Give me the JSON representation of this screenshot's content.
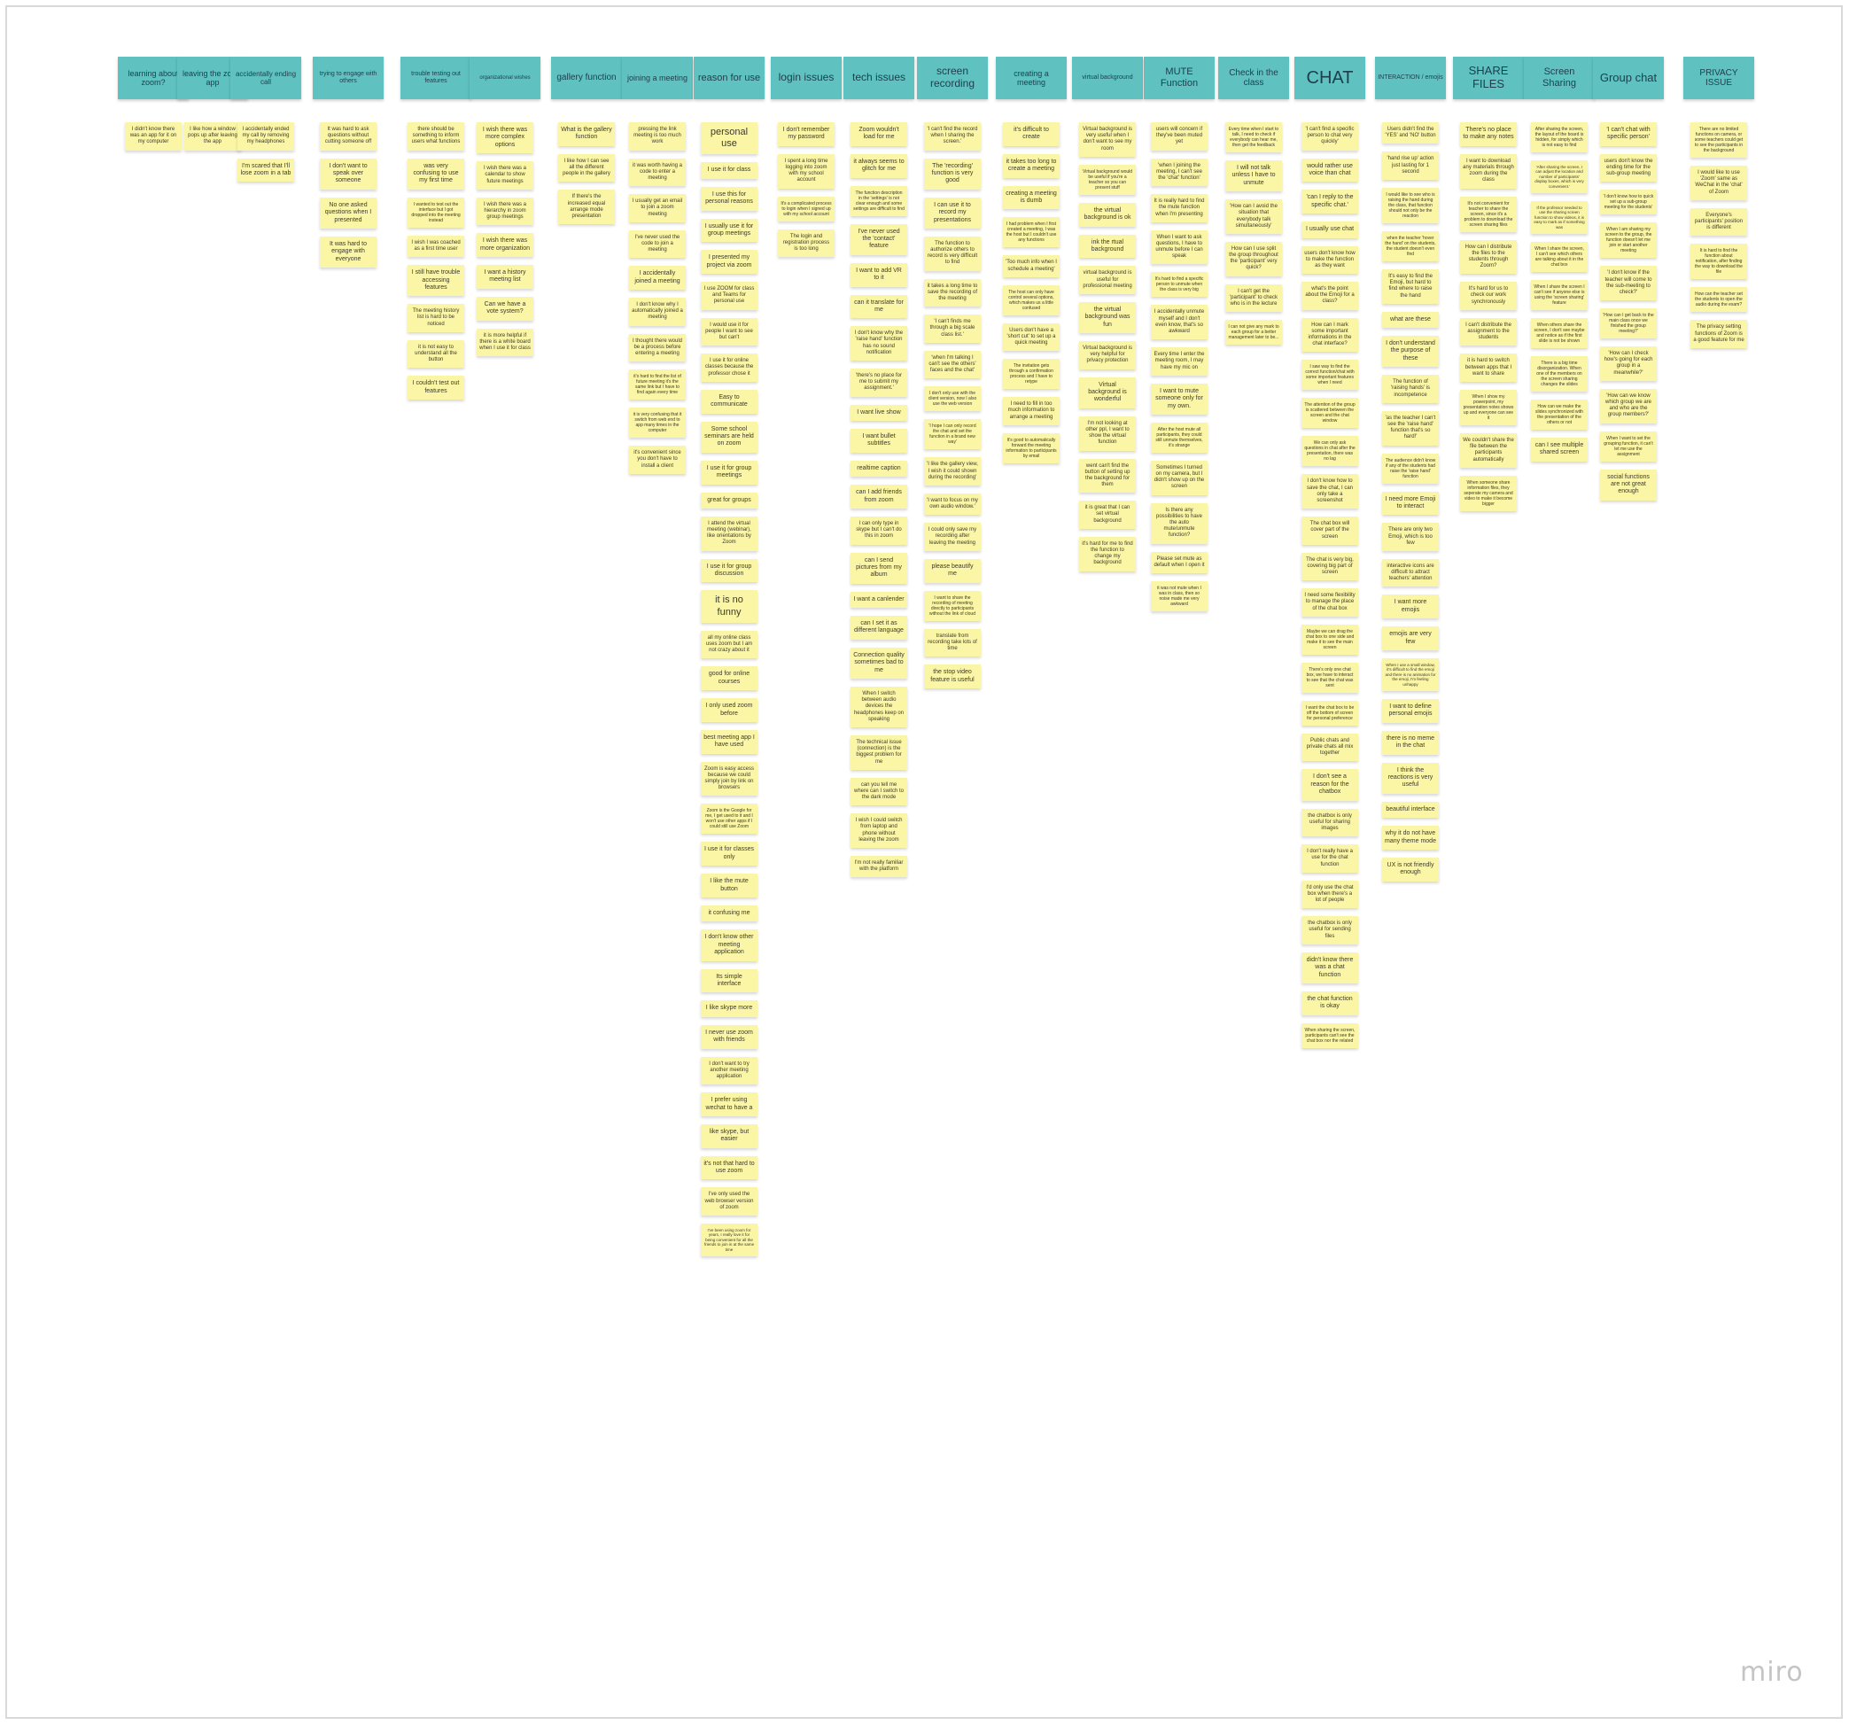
{
  "logo": "miro",
  "columns": [
    {
      "title": "learning about zoom?",
      "notes": [
        "I didn't know there was an app for it on my computer"
      ]
    },
    {
      "title": "leaving the zoom app",
      "notes": [
        "I like how a window pops up after leaving the app"
      ]
    },
    {
      "title": "accidentally ending call",
      "notes": [
        "I accidentally ended my call by removing my headphones",
        "I'm scared that I'll lose zoom in a tab"
      ]
    },
    {
      "title": "trying to engage with others",
      "notes": [
        "It was hard to ask questions without cutting someone off",
        "I don't want to speak over someone",
        "No one asked questions when I presented",
        "It was hard to engage with everyone"
      ]
    },
    {
      "title": "trouble testing out features",
      "notes": [
        "there should be something to inform users what functions",
        "was very confusing to use my first time",
        "I wanted to test out the interface but I got dropped into the meeting instead",
        "I wish I was coached as a first time user",
        "I still have trouble accessing features",
        "The meeting history list is hard to be noticed",
        "it is not easy to understand all the button",
        "I couldn't test out features"
      ]
    },
    {
      "title": "organizational wishes",
      "notes": [
        "I wish there was more complex options",
        "I wish there was a calendar to show future meetings",
        "I wish there was a hierarchy in zoom group meetings",
        "I wish there was more organization",
        "I want a history meeting list",
        "Can we have a vote system?",
        "it is more helpful if there is a white board when I use it for class"
      ]
    },
    {
      "title": "gallery function",
      "notes": [
        "What is the gallery function",
        "I like how I can see all the different people in the gallery",
        "If there's the increased equal arrange mode presentation"
      ]
    },
    {
      "title": "joining a meeting",
      "notes": [
        "pressing the link meeting is too much work",
        "it was worth having a code to enter a meeting",
        "I usually get an email to join a zoom meeting",
        "I've never used the code to join a meeting",
        "I accidentally joined a meeting",
        "I don't know why I automatically joined a meeting",
        "I thought there would be a process before entering a meeting",
        "it's hard to find the list of future meeting it's the same link but I have to find again every time",
        "it is very confusing that it switch from web end to app many times in the computer",
        "it's convenient since you don't have to install a client"
      ]
    },
    {
      "title": "reason for use",
      "notes": [
        "personal use",
        "I use it for class",
        "I use this for personal reasons",
        "I usually use it for group meetings",
        "I presented my project via zoom",
        "I use ZOOM for class and Teams for personal use",
        "I would use it for people I want to see but can't",
        "I use it for online classes because the professor chose it",
        "Easy to communicate",
        "Some school seminars are held on zoom",
        "I use it for group meetings",
        "great for groups",
        "I attend the virtual meeting (webinar), like orientations by Zoom",
        "I use it for group discussion",
        "it is no funny",
        "all my online class uses zoom but I am not crazy about it",
        "good for online courses",
        "I only used zoom before",
        "best meeting app I have used",
        "Zoom is easy access because we could simply join by link on browsers",
        "Zoom is the Google for me, I get used to it and I won't use other apps if I could still use Zoom",
        "I use it for classes only",
        "I like the mute button",
        "it confusing me",
        "I don't know other meeting application",
        "Its simple interface",
        "I like skype more",
        "I never use zoom with friends",
        "I don't want to try another meeting application",
        "I prefer using wechat to have a",
        "like skype, but easier",
        "it's not that hard to use zoom",
        "I've only used the web browser version of zoom",
        "I've been using zoom for years, I really love it for being convenient for all the friends to join in at the same time"
      ]
    },
    {
      "title": "login issues",
      "notes": [
        "I don't remember my password",
        "I spent a long time logging into zoom with my school account",
        "It's a complicated process to login when I signed up with my school account",
        "The login and registration process is too long"
      ]
    },
    {
      "title": "tech issues",
      "notes": [
        "Zoom wouldn't load for me",
        "it always seems to glitch for me",
        "The function description in the 'settings' is not clear enough and some settings are difficult to find",
        "I've never used the 'contact' feature",
        "I want to add VR to it",
        "can it translate for me",
        "I don't know why the 'raise hand' function has no sound notification",
        "'there's no place for me to submit my assignment.'",
        "I want live show",
        "I want bullet subtitles",
        "realtime caption",
        "can I add friends from zoom",
        "I can only type in skype but I can't do this in zoom",
        "can I send pictures from my album",
        "I want a canlender",
        "can I set it as different language",
        "Connection quality sometimes bad to me",
        "When I switch between audio devices the headphones keep on speaking",
        "The technical issue (connection) is the biggest problem for me",
        "can you tell me where can I switch to the dark mode",
        "I wish I could switch from laptop and phone without leaving the zoom",
        "I'm not really familiar with the platform"
      ]
    },
    {
      "title": "screen recording",
      "notes": [
        "'I can't find the record when I sharing the screen.'",
        "The 'recording' function is very good",
        "I can use it to record my presentations",
        "The function to authorize others to record is very difficult to find",
        "it takes a long time to save the recording of the meeting",
        "'I can't finds me through a big scale class list.'",
        "'when I'm talking I can't see the others' faces and the chat'",
        "I don't only use with the client version, now I also use the web version",
        "'I hope I can only record the chat and set the function in a brand new way'",
        "'I like the gallery view, I wish it could shown during the recording'",
        "'I want to focus on my own audio window.'",
        "I could only save my recording after leaving the meeting",
        "please beautify me",
        "I want to share the recording of meeting directly to participants without the link of cloud",
        "translate from recording take lots of time",
        "the stop video feature is useful"
      ]
    },
    {
      "title": "creating a meeting",
      "notes": [
        "it's difficult to create",
        "it takes too long to create a meeting",
        "creating a meeting is dumb",
        "I had problem when I first created a meeting, I was the host but I couldn't use any functions",
        "'Too much info when I schedule a meeting'",
        "The host can only have control several options, which makes us a little confused",
        "Users don't have a 'short cut' to set up a quick meeting",
        "The invitation gets through a confirmation process and I have to retype",
        "I need to fill in too much information to arrange a meeting",
        "It's good to automatically forward the meeting information to participants by email"
      ]
    },
    {
      "title": "virtual background",
      "notes": [
        "Virtual background is very useful when I don't want to see my room",
        "Virtual background would be useful if you're a teacher so you can present stuff",
        "the virtual background is ok",
        "ink the rtual background",
        "virtual background is useful for professional meeting",
        "the virtual background was fun",
        "Virtual background is very helpful for privacy protection",
        "Virtual background is wonderful",
        "I'm not looking at other ppl, I want to show the virtual function",
        "went can't find the button of setting up the background for them",
        "it is great that I can set virtual background",
        "it's hard for me to find the function to change my background"
      ]
    },
    {
      "title": "MUTE Function",
      "notes": [
        "users will concern if they've been muted yet",
        "'when I joining the meeting, I can't see the 'chat' function'",
        "It is really hard to find the mute function when I'm presenting",
        "When I want to ask questions, I have to unmute before I can speak",
        "It's hard to find a specific person to unmute when the class is very big",
        "I accidentally unmute myself and I don't even know, that's so awkward",
        "Every time I enter the meeting room, I may have my mic on",
        "I want to mute someone only for my own.",
        "After the host mute all participants, they could still unmute themselves, it's strange",
        "Sometimes I turned on my camera, but I didn't show up on the screen",
        "Is there any possibilities to have the auto mute/unmute function?",
        "Please set mute as default when I open it",
        "it was not mute when I was in class, then so noise made me very awkward"
      ]
    },
    {
      "title": "Check in the class",
      "notes": [
        "Every time when I start to talk, I need to check if everybody can hear me, then get the feedback",
        "I will not talk unless I have to unmute",
        "'How can I avoid the situation that everybody talk simultaneously'",
        "How can I use split the group throughout the 'participant' very quick?",
        "I can't get the 'participant' to check who is in the lecture",
        "I can not give any mark to each group for a better management later to be..."
      ]
    },
    {
      "title": "CHAT",
      "notes": [
        "'I can't find a specific person to chat very quickly'",
        "would rather use voice than chat",
        "'can I reply to the specific chat.'",
        "I usually use chat",
        "users don't know how to make the function as they want",
        "what's the point about the Emoji for a class?",
        "How can I mark some important informations in the chat interface?",
        "I saw way to find the correct function/chat with some important features when I need",
        "The attention of the group is scattered between the screen and the chat window",
        "We can only ask questions in chat after the presentation, there was no lag",
        "I don't know how to save the chat, I can only take a screenshot",
        "The chat box will cover part of the screen",
        "The chat is very big, covering big part of screen",
        "I need some flexibility to manage the place of the chat box",
        "Maybe we can drag the chat box to one side and make it to see the main screen",
        "There's only one chat box, we have to interact to see that the chat was sent",
        "I want the chat box to be off the bottom of screen for personal preference",
        "Public chats and private chats all mix together",
        "I don't see a reason for the chatbox",
        "the chatbox is only useful for sharing images",
        "I don't really have a use for the chat function",
        "I'd only use the chat box when there's a lot of people",
        "the chatbox is only useful for sending files",
        "didn't know there was a chat function",
        "the chat function is okay",
        "When sharing the screen, participants can't see the chat box nor the related"
      ]
    },
    {
      "title": "INTERACTION / emojis",
      "notes": [
        "Users didn't find the 'YES' and 'NO' button",
        "'hand rise up' action just lasting for 1 second",
        "I would like to see who is raising the hand during the class, that function should not only be the reaction",
        "when the teacher 'hover the hand' on the students, the student doesn't even find",
        "It's easy to find the Emoji, but hard to find where to raise the hand",
        "what are these",
        "I don't understand the purpose of these",
        "The function of 'raising hands' is incompetence",
        "'as the teacher I can't see the 'raise hand' function that's so hard!'",
        "The audience didn't know if any of the students had raise the 'raise hand' function",
        "I need more Emoji to interact",
        "There are only two Emoji, which is too few",
        "interactive icons are difficult to attract teachers' attention",
        "I want more emojis",
        "emojis are very few",
        "When I use a small window, it's difficult to find the emoji and there is no animation for the emoji, I'm feeling unhappy",
        "I want to define personal emojis",
        "there is no meme in the chat",
        "I think the reactions is very useful",
        "beautiful interface",
        "why it do not have many theme mode",
        "UX is not friendly enough"
      ]
    },
    {
      "title": "SHARE FILES",
      "notes": [
        "There's no place to make any notes",
        "I want to download any materials through zoom during the class",
        "It's not convenient for teacher to share the screen, since it's a problem to download the screen sharing files",
        "How can I distribute the files to the students through Zoom?",
        "It's hard for us to check our work synchronously",
        "I can't distribute the assignment to the students",
        "it is hard to switch between apps that I want to share",
        "When I show my powerpoint, my presentation notes shows up and everyone can see it",
        "We couldn't share the file between the participants automatically",
        "When someone share information files, they seperate my camera and video to make it become bigger"
      ]
    },
    {
      "title": "Screen Sharing",
      "notes": [
        "After sharing the screen, the layout of the board is hidden, for simply which is not easy to find",
        "'After sharing the screen, I can adjust the location and number of participants' display boxes, which is very convenient.'",
        "If the professor needed to use the sharing screen function to show videos, it is easy to mark as if something was",
        "When I share the screen, I can't see which others are talking about it in the chat box",
        "When I share the screen I can't see if anyone else is using the 'screen sharing' feature",
        "When others share the screen, I don't see maybe and notice as if the first slide is not be shown",
        "There is a big time disorganization. When one of the members on the screen sharing changes the slides",
        "How can we make the slides synchronized with the presentation of the others or not",
        "can I see multiple shared screen"
      ]
    },
    {
      "title": "Group chat",
      "notes": [
        "'I can't chat with specific person'",
        "users don't know the ending time for the sub-group meeting",
        "'I don't know how to quick set up a sub-group meeting for the students'",
        "When I am sharing my screen to the group, the function doesn't let me join or start another meeting",
        "'I don't know if the teacher will come to the sub-meeting to check?'",
        "'How can I get back to the main class once we finished the group meeting?'",
        "'How can I check how's going for each group in a meanwhile?'",
        "'How can we know which group we are and who are the group members?'",
        "When I want to set the grouping function, it can't let me use the assignment",
        "social functions are not great enough"
      ]
    },
    {
      "title": "PRIVACY ISSUE",
      "notes": [
        "There are no limited functions on camera, or some teachers could get to see the participants in the background",
        "I would like to use 'Zoom' same as WeChat in the 'chat' of Zoom",
        "Everyone's participants' position is different",
        "It is hard to find the function about notification, after finding the way to download the file",
        "How can the teacher set the students to open the audio during the exam?",
        "The privacy setting functions of Zoom is a good feature for me"
      ]
    }
  ]
}
